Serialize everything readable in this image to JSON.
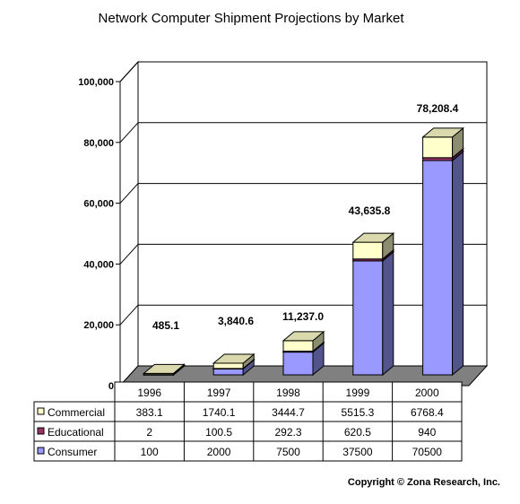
{
  "chart_data": {
    "type": "bar",
    "stacked": true,
    "three_d": true,
    "title": "Network Computer Shipment Projections by Market",
    "categories": [
      "1996",
      "1997",
      "1998",
      "1999",
      "2000"
    ],
    "series": [
      {
        "name": "Commercial",
        "values": [
          "383.1",
          "1740.1",
          "3444.7",
          "5515.3",
          "6768.4"
        ],
        "color": "#ffffcc"
      },
      {
        "name": "Educational",
        "values": [
          "2",
          "100.5",
          "292.3",
          "620.5",
          "940"
        ],
        "color": "#993366"
      },
      {
        "name": "Consumer",
        "values": [
          "100",
          "2000",
          "7500",
          "37500",
          "70500"
        ],
        "color": "#9999ff"
      }
    ],
    "totals": [
      "485.1",
      "3,840.6",
      "11,237.0",
      "43,635.8",
      "78,208.4"
    ],
    "y_ticks": [
      "100,000",
      "80,000",
      "60,000",
      "40,000",
      "20,000",
      "0"
    ],
    "ylim": [
      0,
      100000
    ],
    "grid": true,
    "data_table": true
  },
  "footer": {
    "copyright": "Copyright © Zona Research, Inc."
  }
}
